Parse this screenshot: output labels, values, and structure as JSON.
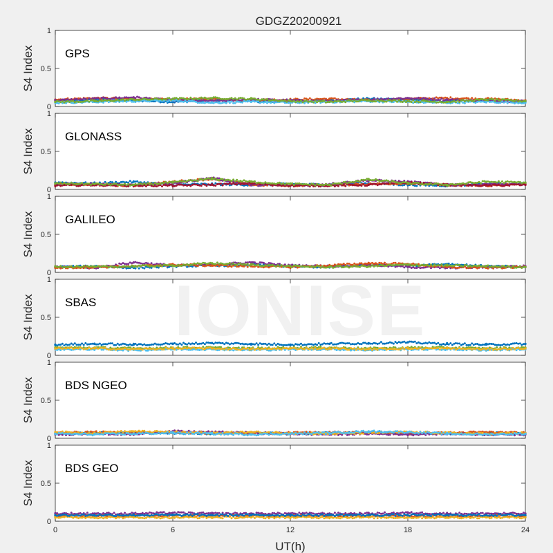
{
  "title": "GDGZ20200921",
  "watermark": "IONISE",
  "chart_data": {
    "type": "scatter",
    "title": "GDGZ20200921",
    "xlabel": "UT(h)",
    "ylabel": "S4 Index",
    "xlim": [
      0,
      24
    ],
    "ylim": [
      0,
      1
    ],
    "xticks": [
      "0",
      "6",
      "12",
      "18",
      "24"
    ],
    "yticks": [
      "0",
      "0.5",
      "1"
    ],
    "grid": false,
    "series_colors": [
      "#0072bd",
      "#d95319",
      "#edb120",
      "#7e2f8e",
      "#77ac30",
      "#4dbeee",
      "#a2142f"
    ],
    "panels": [
      {
        "name": "GPS",
        "series": [
          {
            "color": "#0072bd",
            "x": [
              0,
              2,
              4,
              6,
              8,
              10,
              12,
              14,
              16,
              18,
              20,
              22,
              24
            ],
            "y": [
              0.07,
              0.09,
              0.08,
              0.06,
              0.08,
              0.07,
              0.06,
              0.08,
              0.1,
              0.09,
              0.07,
              0.08,
              0.06
            ]
          },
          {
            "color": "#d95319",
            "x": [
              0,
              2,
              4,
              6,
              8,
              10,
              12,
              14,
              16,
              18,
              20,
              22,
              24
            ],
            "y": [
              0.09,
              0.11,
              0.1,
              0.09,
              0.1,
              0.08,
              0.09,
              0.1,
              0.08,
              0.1,
              0.11,
              0.1,
              0.08
            ]
          },
          {
            "color": "#7e2f8e",
            "x": [
              0,
              2,
              4,
              6,
              8,
              10,
              12,
              14,
              16,
              18,
              20,
              22,
              24
            ],
            "y": [
              0.08,
              0.1,
              0.12,
              0.08,
              0.07,
              0.09,
              0.08,
              0.07,
              0.09,
              0.11,
              0.09,
              0.07,
              0.07
            ]
          },
          {
            "color": "#4dbeee",
            "x": [
              0,
              2,
              4,
              6,
              8,
              10,
              12,
              14,
              16,
              18,
              20,
              22,
              24
            ],
            "y": [
              0.05,
              0.06,
              0.07,
              0.08,
              0.05,
              0.06,
              0.05,
              0.06,
              0.07,
              0.06,
              0.05,
              0.06,
              0.05
            ]
          },
          {
            "color": "#77ac30",
            "x": [
              0,
              2,
              4,
              6,
              8,
              10,
              12,
              14,
              16,
              18,
              20,
              22,
              24
            ],
            "y": [
              0.06,
              0.07,
              0.09,
              0.1,
              0.11,
              0.1,
              0.07,
              0.06,
              0.08,
              0.07,
              0.06,
              0.09,
              0.07
            ]
          }
        ]
      },
      {
        "name": "GLONASS",
        "series": [
          {
            "color": "#0072bd",
            "x": [
              0,
              2,
              4,
              6,
              8,
              10,
              12,
              14,
              16,
              18,
              20,
              22,
              24
            ],
            "y": [
              0.09,
              0.08,
              0.1,
              0.06,
              0.07,
              0.06,
              0.07,
              0.06,
              0.08,
              0.06,
              0.05,
              0.07,
              0.08
            ]
          },
          {
            "color": "#d95319",
            "x": [
              0,
              2,
              4,
              6,
              8,
              10,
              12,
              14,
              16,
              18,
              20,
              22,
              24
            ],
            "y": [
              0.07,
              0.06,
              0.05,
              0.1,
              0.14,
              0.06,
              0.05,
              0.06,
              0.07,
              0.08,
              0.06,
              0.05,
              0.07
            ]
          },
          {
            "color": "#7e2f8e",
            "x": [
              0,
              2,
              4,
              6,
              8,
              10,
              12,
              14,
              16,
              18,
              20,
              22,
              24
            ],
            "y": [
              0.06,
              0.07,
              0.06,
              0.08,
              0.15,
              0.06,
              0.05,
              0.07,
              0.12,
              0.1,
              0.06,
              0.07,
              0.06
            ]
          },
          {
            "color": "#a2142f",
            "x": [
              0,
              2,
              4,
              6,
              8,
              10,
              12,
              14,
              16,
              18,
              20,
              22,
              24
            ],
            "y": [
              0.05,
              0.06,
              0.05,
              0.05,
              0.06,
              0.08,
              0.05,
              0.05,
              0.06,
              0.09,
              0.06,
              0.05,
              0.06
            ]
          },
          {
            "color": "#77ac30",
            "x": [
              0,
              2,
              4,
              6,
              8,
              10,
              12,
              14,
              16,
              18,
              20,
              22,
              24
            ],
            "y": [
              0.08,
              0.07,
              0.06,
              0.09,
              0.14,
              0.1,
              0.07,
              0.06,
              0.13,
              0.08,
              0.06,
              0.1,
              0.09
            ]
          }
        ]
      },
      {
        "name": "GALILEO",
        "series": [
          {
            "color": "#0072bd",
            "x": [
              0,
              2,
              4,
              6,
              8,
              10,
              12,
              14,
              16,
              18,
              20,
              22,
              24
            ],
            "y": [
              0.07,
              0.08,
              0.06,
              0.08,
              0.09,
              0.1,
              0.08,
              0.07,
              0.1,
              0.09,
              0.11,
              0.08,
              0.07
            ]
          },
          {
            "color": "#7e2f8e",
            "x": [
              0,
              2,
              4,
              6,
              8,
              10,
              12,
              14,
              16,
              18,
              20,
              22,
              24
            ],
            "y": [
              0.07,
              0.06,
              0.13,
              0.09,
              0.1,
              0.13,
              0.09,
              0.08,
              0.1,
              0.07,
              0.06,
              0.07,
              0.08
            ]
          },
          {
            "color": "#d95319",
            "x": [
              0,
              2,
              4,
              6,
              8,
              10,
              12,
              14,
              16,
              18,
              20,
              22,
              24
            ],
            "y": [
              0.06,
              0.07,
              0.08,
              0.1,
              0.09,
              0.08,
              0.07,
              0.09,
              0.12,
              0.11,
              0.07,
              0.06,
              0.07
            ]
          },
          {
            "color": "#77ac30",
            "x": [
              0,
              2,
              4,
              6,
              8,
              10,
              12,
              14,
              16,
              18,
              20,
              22,
              24
            ],
            "y": [
              0.08,
              0.07,
              0.08,
              0.09,
              0.12,
              0.1,
              0.08,
              0.07,
              0.08,
              0.1,
              0.09,
              0.08,
              0.07
            ]
          }
        ]
      },
      {
        "name": "SBAS",
        "series": [
          {
            "color": "#0072bd",
            "x": [
              0,
              2,
              4,
              6,
              8,
              10,
              12,
              14,
              16,
              18,
              20,
              22,
              24
            ],
            "y": [
              0.14,
              0.15,
              0.14,
              0.15,
              0.16,
              0.15,
              0.14,
              0.15,
              0.16,
              0.17,
              0.15,
              0.14,
              0.15
            ]
          },
          {
            "color": "#77ac30",
            "x": [
              0,
              2,
              4,
              6,
              8,
              10,
              12,
              14,
              16,
              18,
              20,
              22,
              24
            ],
            "y": [
              0.1,
              0.1,
              0.09,
              0.1,
              0.1,
              0.09,
              0.1,
              0.1,
              0.09,
              0.1,
              0.1,
              0.09,
              0.1
            ]
          },
          {
            "color": "#4dbeee",
            "x": [
              0,
              2,
              4,
              6,
              8,
              10,
              12,
              14,
              16,
              18,
              20,
              22,
              24
            ],
            "y": [
              0.08,
              0.08,
              0.07,
              0.08,
              0.08,
              0.07,
              0.08,
              0.08,
              0.07,
              0.08,
              0.08,
              0.07,
              0.08
            ]
          },
          {
            "color": "#edb120",
            "x": [
              0,
              2,
              4,
              6,
              8,
              10,
              12,
              14,
              16,
              18,
              20,
              22,
              24
            ],
            "y": [
              0.09,
              0.09,
              0.08,
              0.09,
              0.09,
              0.08,
              0.09,
              0.09,
              0.08,
              0.09,
              0.09,
              0.08,
              0.09
            ]
          }
        ]
      },
      {
        "name": "BDS NGEO",
        "series": [
          {
            "color": "#0072bd",
            "x": [
              0,
              2,
              4,
              6,
              8,
              10,
              12,
              14,
              16,
              18,
              20,
              22,
              24
            ],
            "y": [
              0.06,
              0.07,
              0.08,
              0.07,
              0.06,
              0.07,
              0.06,
              0.07,
              0.08,
              0.07,
              0.06,
              0.07,
              0.06
            ]
          },
          {
            "color": "#d95319",
            "x": [
              0,
              2,
              4,
              6,
              8,
              10,
              12,
              14,
              16,
              18,
              20,
              22,
              24
            ],
            "y": [
              0.07,
              0.08,
              0.07,
              0.08,
              0.07,
              0.06,
              0.07,
              0.08,
              0.07,
              0.06,
              0.07,
              0.08,
              0.07
            ]
          },
          {
            "color": "#7e2f8e",
            "x": [
              0,
              2,
              4,
              6,
              8,
              10,
              12,
              14,
              16,
              18,
              20,
              22,
              24
            ],
            "y": [
              0.05,
              0.06,
              0.05,
              0.09,
              0.08,
              0.07,
              0.06,
              0.05,
              0.06,
              0.05,
              0.06,
              0.05,
              0.05
            ]
          },
          {
            "color": "#edb120",
            "x": [
              0,
              2,
              4,
              6,
              8,
              10,
              12,
              14,
              16,
              18,
              20,
              22,
              24
            ],
            "y": [
              0.08,
              0.07,
              0.09,
              0.08,
              0.07,
              0.08,
              0.07,
              0.06,
              0.07,
              0.08,
              0.07,
              0.06,
              0.07
            ]
          },
          {
            "color": "#4dbeee",
            "x": [
              0,
              2,
              4,
              6,
              8,
              10,
              12,
              14,
              16,
              18,
              20,
              22,
              24
            ],
            "y": [
              0.06,
              0.05,
              0.06,
              0.07,
              0.06,
              0.05,
              0.06,
              0.07,
              0.09,
              0.08,
              0.06,
              0.05,
              0.06
            ]
          }
        ]
      },
      {
        "name": "BDS GEO",
        "series": [
          {
            "color": "#7e2f8e",
            "x": [
              0,
              2,
              4,
              6,
              8,
              10,
              12,
              14,
              16,
              18,
              20,
              22,
              24
            ],
            "y": [
              0.1,
              0.1,
              0.1,
              0.11,
              0.1,
              0.1,
              0.1,
              0.1,
              0.1,
              0.11,
              0.1,
              0.1,
              0.1
            ]
          },
          {
            "color": "#d95319",
            "x": [
              0,
              2,
              4,
              6,
              8,
              10,
              12,
              14,
              16,
              18,
              20,
              22,
              24
            ],
            "y": [
              0.07,
              0.07,
              0.07,
              0.07,
              0.07,
              0.07,
              0.07,
              0.07,
              0.07,
              0.07,
              0.07,
              0.07,
              0.07
            ]
          },
          {
            "color": "#edb120",
            "x": [
              0,
              2,
              4,
              6,
              8,
              10,
              12,
              14,
              16,
              18,
              20,
              22,
              24
            ],
            "y": [
              0.05,
              0.05,
              0.05,
              0.05,
              0.05,
              0.05,
              0.05,
              0.05,
              0.05,
              0.05,
              0.05,
              0.05,
              0.05
            ]
          },
          {
            "color": "#0072bd",
            "x": [
              0,
              2,
              4,
              6,
              8,
              10,
              12,
              14,
              16,
              18,
              20,
              22,
              24
            ],
            "y": [
              0.08,
              0.08,
              0.08,
              0.08,
              0.08,
              0.08,
              0.08,
              0.08,
              0.08,
              0.08,
              0.08,
              0.08,
              0.08
            ]
          }
        ]
      }
    ]
  }
}
